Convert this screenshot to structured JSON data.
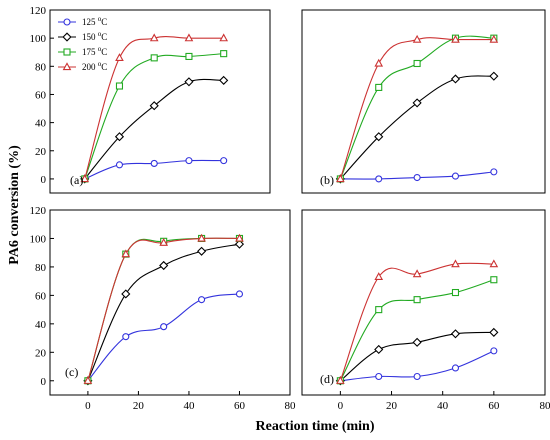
{
  "figure": {
    "ylabel": "PA6 conversion (%)",
    "xlabel": "Reaction time (min)"
  },
  "legend": {
    "items": [
      {
        "label": "125 °C",
        "color": "#3333dd",
        "marker": "circle"
      },
      {
        "label": "150 °C",
        "color": "#000000",
        "marker": "diamond"
      },
      {
        "label": "175 °C",
        "color": "#22aa22",
        "marker": "square"
      },
      {
        "label": "200 °C",
        "color": "#cc3333",
        "marker": "triangle"
      }
    ]
  },
  "chart_data": [
    {
      "type": "line",
      "panel": "(a)",
      "xlim": [
        -15,
        80
      ],
      "ylim": [
        -10,
        120
      ],
      "xticks": [],
      "yticks": [
        0,
        20,
        40,
        60,
        80,
        100,
        120
      ],
      "grid": false,
      "series": [
        {
          "name": "125 °C",
          "x": [
            0,
            15,
            30,
            45,
            60
          ],
          "values": [
            0,
            10,
            11,
            13,
            13
          ]
        },
        {
          "name": "150 °C",
          "x": [
            0,
            15,
            30,
            45,
            60
          ],
          "values": [
            0,
            30,
            52,
            69,
            70
          ]
        },
        {
          "name": "175 °C",
          "x": [
            0,
            15,
            30,
            45,
            60
          ],
          "values": [
            0,
            66,
            86,
            87,
            89
          ]
        },
        {
          "name": "200 °C",
          "x": [
            0,
            15,
            30,
            45,
            60
          ],
          "values": [
            0,
            86,
            100,
            100,
            100
          ]
        }
      ]
    },
    {
      "type": "line",
      "panel": "(b)",
      "xlim": [
        -15,
        80
      ],
      "ylim": [
        -10,
        120
      ],
      "xticks": [],
      "yticks": [],
      "grid": false,
      "series": [
        {
          "name": "125 °C",
          "x": [
            0,
            15,
            30,
            45,
            60
          ],
          "values": [
            0,
            0,
            1,
            2,
            5
          ]
        },
        {
          "name": "150 °C",
          "x": [
            0,
            15,
            30,
            45,
            60
          ],
          "values": [
            0,
            30,
            54,
            71,
            73
          ]
        },
        {
          "name": "175 °C",
          "x": [
            0,
            15,
            30,
            45,
            60
          ],
          "values": [
            0,
            65,
            82,
            100,
            100
          ]
        },
        {
          "name": "200 °C",
          "x": [
            0,
            15,
            30,
            45,
            60
          ],
          "values": [
            0,
            82,
            99,
            99,
            99
          ]
        }
      ]
    },
    {
      "type": "line",
      "panel": "(c)",
      "xlim": [
        -15,
        80
      ],
      "ylim": [
        -10,
        120
      ],
      "xticks": [
        0,
        20,
        40,
        60,
        80
      ],
      "yticks": [
        0,
        20,
        40,
        60,
        80,
        100,
        120
      ],
      "grid": false,
      "series": [
        {
          "name": "125 °C",
          "x": [
            0,
            15,
            30,
            45,
            60
          ],
          "values": [
            0,
            31,
            38,
            57,
            61
          ]
        },
        {
          "name": "150 °C",
          "x": [
            0,
            15,
            30,
            45,
            60
          ],
          "values": [
            0,
            61,
            81,
            91,
            96
          ]
        },
        {
          "name": "175 °C",
          "x": [
            0,
            15,
            30,
            45,
            60
          ],
          "values": [
            0,
            89,
            98,
            100,
            100
          ]
        },
        {
          "name": "200 °C",
          "x": [
            0,
            15,
            30,
            45,
            60
          ],
          "values": [
            0,
            89,
            97,
            100,
            100
          ]
        }
      ]
    },
    {
      "type": "line",
      "panel": "(d)",
      "xlim": [
        -15,
        80
      ],
      "ylim": [
        -10,
        120
      ],
      "xticks": [
        0,
        20,
        40,
        60,
        80
      ],
      "yticks": [],
      "grid": false,
      "series": [
        {
          "name": "125 °C",
          "x": [
            0,
            15,
            30,
            45,
            60
          ],
          "values": [
            0,
            3,
            3,
            9,
            21
          ]
        },
        {
          "name": "150 °C",
          "x": [
            0,
            15,
            30,
            45,
            60
          ],
          "values": [
            0,
            22,
            27,
            33,
            34
          ]
        },
        {
          "name": "175 °C",
          "x": [
            0,
            15,
            30,
            45,
            60
          ],
          "values": [
            0,
            50,
            57,
            62,
            71
          ]
        },
        {
          "name": "200 °C",
          "x": [
            0,
            15,
            30,
            45,
            60
          ],
          "values": [
            0,
            73,
            75,
            82,
            82
          ]
        }
      ]
    }
  ]
}
